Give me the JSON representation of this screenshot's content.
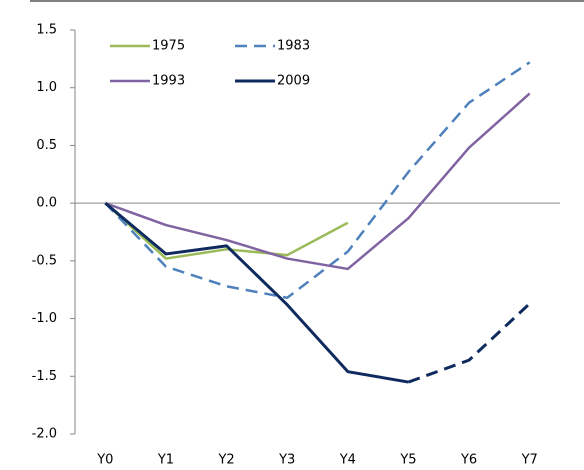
{
  "chart_data": {
    "type": "line",
    "categories": [
      "Y0",
      "Y1",
      "Y2",
      "Y3",
      "Y4",
      "Y5",
      "Y6",
      "Y7"
    ],
    "series": [
      {
        "name": "1975",
        "color": "#9bbb59",
        "values": [
          0,
          -0.48,
          -0.4,
          -0.45,
          -0.17,
          null,
          null,
          null
        ]
      },
      {
        "name": "1983",
        "color": "#4f81bd",
        "style": "dashed",
        "values": [
          0,
          -0.55,
          -0.72,
          -0.82,
          -0.42,
          0.27,
          0.87,
          1.22
        ]
      },
      {
        "name": "1993",
        "color": "#8064a2",
        "values": [
          0,
          -0.19,
          -0.32,
          -0.48,
          -0.57,
          -0.13,
          0.48,
          0.95
        ]
      },
      {
        "name": "2009",
        "color": "#0f2a5e",
        "dashed_from": 5,
        "values": [
          0,
          -0.44,
          -0.37,
          -0.88,
          -1.46,
          -1.55,
          -1.36,
          -0.87
        ]
      }
    ],
    "ylim": [
      -2,
      1.5
    ],
    "yticks": [
      {
        "value": -2,
        "label": "-2.0"
      },
      -1.5,
      {
        "value": -1,
        "label": "-1.0"
      },
      -0.5,
      {
        "value": 0,
        "label": "0.0"
      },
      0.5,
      {
        "value": 1,
        "label": "1.0"
      },
      1.5
    ],
    "legend": "top-left"
  }
}
